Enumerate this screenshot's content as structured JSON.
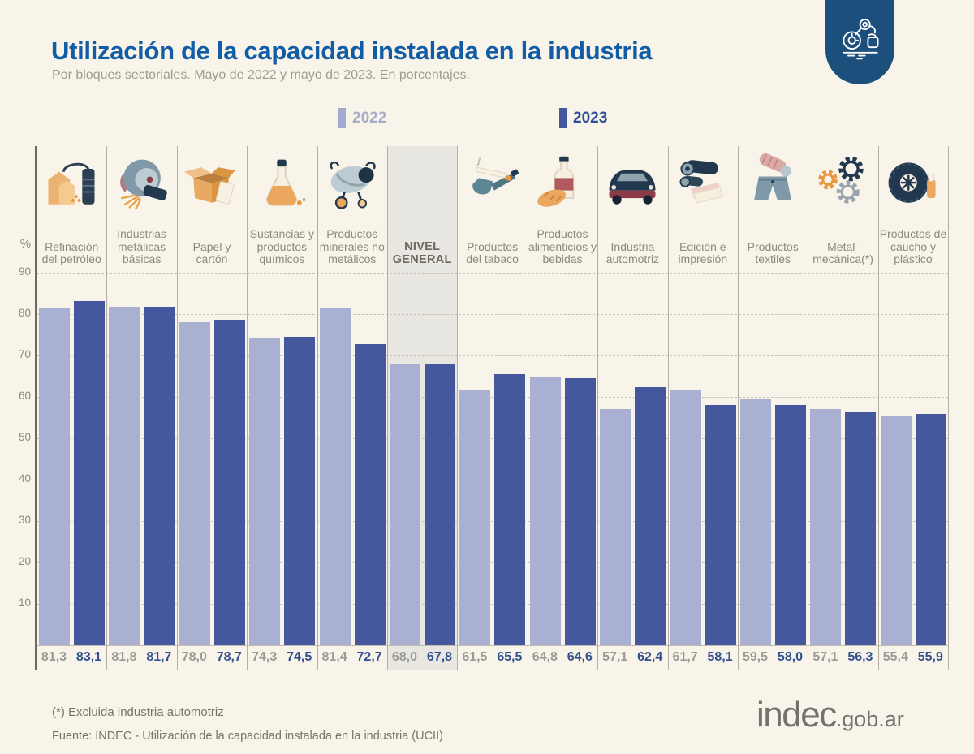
{
  "header": {
    "title": "Utilización de la capacidad instalada en la industria",
    "subtitle": "Por bloques sectoriales. Mayo de 2022 y mayo de 2023. En porcentajes.",
    "badge_icon": "robot-arm-icon"
  },
  "legend": {
    "items": [
      {
        "label": "2022",
        "color": "#a4aacd",
        "text_color": "#a7adca"
      },
      {
        "label": "2023",
        "color": "#45589e",
        "text_color": "#2e4f9b"
      }
    ]
  },
  "chart_data": {
    "type": "bar",
    "title": "Utilización de la capacidad instalada en la industria",
    "subtitle": "Por bloques sectoriales. Mayo de 2022 y mayo de 2023. En porcentajes.",
    "ylabel": "%",
    "ylim": [
      0,
      90
    ],
    "yticks": [
      10,
      20,
      30,
      40,
      50,
      60,
      70,
      80,
      90
    ],
    "grid": "horizontal-dashed",
    "legend_position": "top",
    "decimal_separator": ",",
    "categories": [
      {
        "label": "Refinación del petróleo",
        "icon": "oil-refinery-icon",
        "highlight": false
      },
      {
        "label": "Industrias metálicas básicas",
        "icon": "metal-grinder-icon",
        "highlight": false
      },
      {
        "label": "Papel y cartón",
        "icon": "cardboard-box-icon",
        "highlight": false
      },
      {
        "label": "Sustancias y productos químicos",
        "icon": "chemical-flask-icon",
        "highlight": false
      },
      {
        "label": "Productos minerales no metálicos",
        "icon": "cement-mixer-icon",
        "highlight": false
      },
      {
        "label": "NIVEL GENERAL",
        "icon": null,
        "highlight": true
      },
      {
        "label": "Productos del tabaco",
        "icon": "tobacco-pipe-icon",
        "highlight": false
      },
      {
        "label": "Productos alimenticios y bebidas",
        "icon": "bottle-bread-icon",
        "highlight": false
      },
      {
        "label": "Industria automotriz",
        "icon": "car-icon",
        "highlight": false
      },
      {
        "label": "Edición e impresión",
        "icon": "printing-rolls-icon",
        "highlight": false
      },
      {
        "label": "Productos textiles",
        "icon": "textile-shorts-icon",
        "highlight": false
      },
      {
        "label": "Metal-mecánica(*)",
        "icon": "gears-icon",
        "highlight": false
      },
      {
        "label": "Productos de caucho y plástico",
        "icon": "tire-icon",
        "highlight": false
      }
    ],
    "series": [
      {
        "name": "2022",
        "values": [
          81.3,
          81.8,
          78.0,
          74.3,
          81.4,
          68.0,
          61.5,
          64.8,
          57.1,
          61.7,
          59.5,
          57.1,
          55.4
        ]
      },
      {
        "name": "2023",
        "values": [
          83.1,
          81.7,
          78.7,
          74.5,
          72.7,
          67.8,
          65.5,
          64.6,
          62.4,
          58.1,
          58.0,
          56.3,
          55.9
        ]
      }
    ]
  },
  "footer": {
    "footnote": "(*) Excluida industria automotriz",
    "source": "Fuente: INDEC - Utilización de la capacidad instalada en la industria (UCII)",
    "logo_text": "indec",
    "logo_suffix": ".gob.ar"
  },
  "colors": {
    "background": "#f9f4e9",
    "title": "#115ca6",
    "bar_2022": "#a9b0d1",
    "bar_2023": "#45589e",
    "highlight_column": "#e9e7e1",
    "badge": "#1d4f7d",
    "gridline": "#c9c3b6",
    "separator": "#b5afa3"
  }
}
